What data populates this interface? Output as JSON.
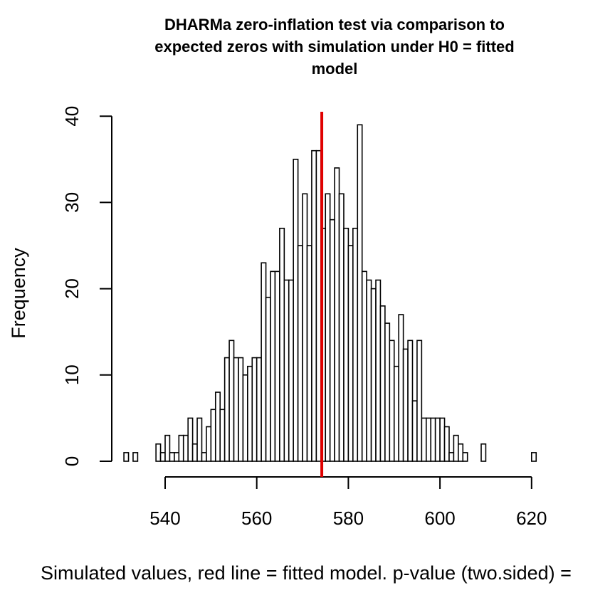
{
  "chart_data": {
    "type": "bar",
    "title": "DHARMa zero-inflation test via comparison to expected zeros with simulation under H0 = fitted model",
    "title_lines": [
      "DHARMa zero-inflation test via comparison to",
      "expected zeros with simulation under H0 = fitted",
      "model"
    ],
    "xlabel": "Simulated values, red line = fitted model. p-value (two.sided) =",
    "ylabel": "Frequency",
    "xlim": [
      530,
      622
    ],
    "ylim": [
      0,
      40
    ],
    "x_ticks": [
      540,
      560,
      580,
      600,
      620
    ],
    "y_ticks": [
      0,
      10,
      20,
      30,
      40
    ],
    "bin_width": 1,
    "bins": [
      [
        532,
        1
      ],
      [
        534,
        1
      ],
      [
        539,
        2
      ],
      [
        540,
        1
      ],
      [
        541,
        3
      ],
      [
        542,
        1
      ],
      [
        543,
        1
      ],
      [
        544,
        3
      ],
      [
        545,
        3
      ],
      [
        546,
        5
      ],
      [
        547,
        2
      ],
      [
        548,
        5
      ],
      [
        549,
        1
      ],
      [
        550,
        4
      ],
      [
        551,
        6
      ],
      [
        552,
        8
      ],
      [
        553,
        6
      ],
      [
        554,
        12
      ],
      [
        555,
        14
      ],
      [
        556,
        12
      ],
      [
        557,
        12
      ],
      [
        558,
        10
      ],
      [
        559,
        11
      ],
      [
        560,
        12
      ],
      [
        561,
        12
      ],
      [
        562,
        23
      ],
      [
        563,
        19
      ],
      [
        564,
        22
      ],
      [
        565,
        22
      ],
      [
        566,
        27
      ],
      [
        567,
        21
      ],
      [
        568,
        21
      ],
      [
        569,
        35
      ],
      [
        570,
        25
      ],
      [
        571,
        31
      ],
      [
        572,
        25
      ],
      [
        573,
        36
      ],
      [
        574,
        36
      ],
      [
        575,
        27
      ],
      [
        576,
        31
      ],
      [
        577,
        28
      ],
      [
        578,
        34
      ],
      [
        579,
        31
      ],
      [
        580,
        27
      ],
      [
        581,
        25
      ],
      [
        582,
        27
      ],
      [
        583,
        39
      ],
      [
        584,
        22
      ],
      [
        585,
        21
      ],
      [
        586,
        20
      ],
      [
        587,
        21
      ],
      [
        588,
        18
      ],
      [
        589,
        16
      ],
      [
        590,
        14
      ],
      [
        591,
        11
      ],
      [
        592,
        17
      ],
      [
        593,
        13
      ],
      [
        594,
        14
      ],
      [
        595,
        7
      ],
      [
        596,
        14
      ],
      [
        597,
        5
      ],
      [
        598,
        5
      ],
      [
        599,
        5
      ],
      [
        600,
        5
      ],
      [
        601,
        5
      ],
      [
        602,
        4
      ],
      [
        603,
        1
      ],
      [
        604,
        3
      ],
      [
        605,
        2
      ],
      [
        606,
        1
      ],
      [
        610,
        2
      ],
      [
        621,
        1
      ]
    ],
    "reference_line": {
      "x": 574.2,
      "color": "#e00000"
    },
    "bar_fill": "#ffffff",
    "bar_stroke": "#000000",
    "grid": false,
    "legend": "none"
  }
}
